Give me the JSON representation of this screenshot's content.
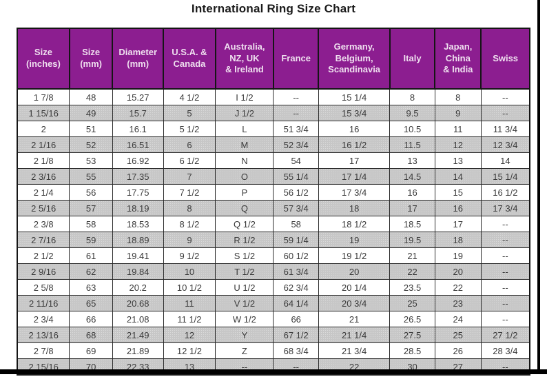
{
  "page": {
    "title": "International Ring Size Chart"
  },
  "colors": {
    "header_bg": "#8C1E90",
    "header_text": "#EFDFEF",
    "row_alt_bg": "#C7C7C7",
    "row_bg": "#FFFFFF",
    "grid_line": "#2b2b2b",
    "frame_line": "#000000",
    "body_text": "#3a3a3a",
    "title_text": "#1a1a1a"
  },
  "chart_data": {
    "type": "table",
    "title": "International Ring Size Chart",
    "layout_hints": {
      "header_style": "purple background, light text",
      "row_striping": "alternate rows shaded gray (2nd, 4th, ... rows)",
      "grid": "on"
    },
    "headers": [
      "Size\n(inches)",
      "Size\n(mm)",
      "Diameter\n(mm)",
      "U.S.A. &\nCanada",
      "Australia,\nNZ, UK\n& Ireland",
      "France",
      "Germany,\nBelgium,\nScandinavia",
      "Italy",
      "Japan,\nChina\n& India",
      "Swiss"
    ],
    "col_widths_pct": [
      10.2,
      8.4,
      9.9,
      10.2,
      11.3,
      8.8,
      13.9,
      8.8,
      9.0,
      9.5
    ],
    "rows": [
      [
        "1 7/8",
        "48",
        "15.27",
        "4 1/2",
        "I 1/2",
        "--",
        "15 1/4",
        "8",
        "8",
        "--"
      ],
      [
        "1 15/16",
        "49",
        "15.7",
        "5",
        "J 1/2",
        "--",
        "15 3/4",
        "9.5",
        "9",
        "--"
      ],
      [
        "2",
        "51",
        "16.1",
        "5 1/2",
        "L",
        "51 3/4",
        "16",
        "10.5",
        "11",
        "11 3/4"
      ],
      [
        "2 1/16",
        "52",
        "16.51",
        "6",
        "M",
        "52 3/4",
        "16 1/2",
        "11.5",
        "12",
        "12 3/4"
      ],
      [
        "2 1/8",
        "53",
        "16.92",
        "6 1/2",
        "N",
        "54",
        "17",
        "13",
        "13",
        "14"
      ],
      [
        "2 3/16",
        "55",
        "17.35",
        "7",
        "O",
        "55 1/4",
        "17 1/4",
        "14.5",
        "14",
        "15 1/4"
      ],
      [
        "2 1/4",
        "56",
        "17.75",
        "7 1/2",
        "P",
        "56 1/2",
        "17 3/4",
        "16",
        "15",
        "16 1/2"
      ],
      [
        "2 5/16",
        "57",
        "18.19",
        "8",
        "Q",
        "57 3/4",
        "18",
        "17",
        "16",
        "17 3/4"
      ],
      [
        "2 3/8",
        "58",
        "18.53",
        "8 1/2",
        "Q 1/2",
        "58",
        "18 1/2",
        "18.5",
        "17",
        "--"
      ],
      [
        "2 7/16",
        "59",
        "18.89",
        "9",
        "R 1/2",
        "59 1/4",
        "19",
        "19.5",
        "18",
        "--"
      ],
      [
        "2 1/2",
        "61",
        "19.41",
        "9 1/2",
        "S 1/2",
        "60 1/2",
        "19 1/2",
        "21",
        "19",
        "--"
      ],
      [
        "2 9/16",
        "62",
        "19.84",
        "10",
        "T 1/2",
        "61 3/4",
        "20",
        "22",
        "20",
        "--"
      ],
      [
        "2 5/8",
        "63",
        "20.2",
        "10 1/2",
        "U 1/2",
        "62 3/4",
        "20 1/4",
        "23.5",
        "22",
        "--"
      ],
      [
        "2 11/16",
        "65",
        "20.68",
        "11",
        "V 1/2",
        "64 1/4",
        "20 3/4",
        "25",
        "23",
        "--"
      ],
      [
        "2 3/4",
        "66",
        "21.08",
        "11 1/2",
        "W 1/2",
        "66",
        "21",
        "26.5",
        "24",
        "--"
      ],
      [
        "2 13/16",
        "68",
        "21.49",
        "12",
        "Y",
        "67 1/2",
        "21 1/4",
        "27.5",
        "25",
        "27 1/2"
      ],
      [
        "2 7/8",
        "69",
        "21.89",
        "12 1/2",
        "Z",
        "68 3/4",
        "21 3/4",
        "28.5",
        "26",
        "28 3/4"
      ],
      [
        "2 15/16",
        "70",
        "22.33",
        "13",
        "--",
        "--",
        "22",
        "30",
        "27",
        "--"
      ]
    ]
  }
}
